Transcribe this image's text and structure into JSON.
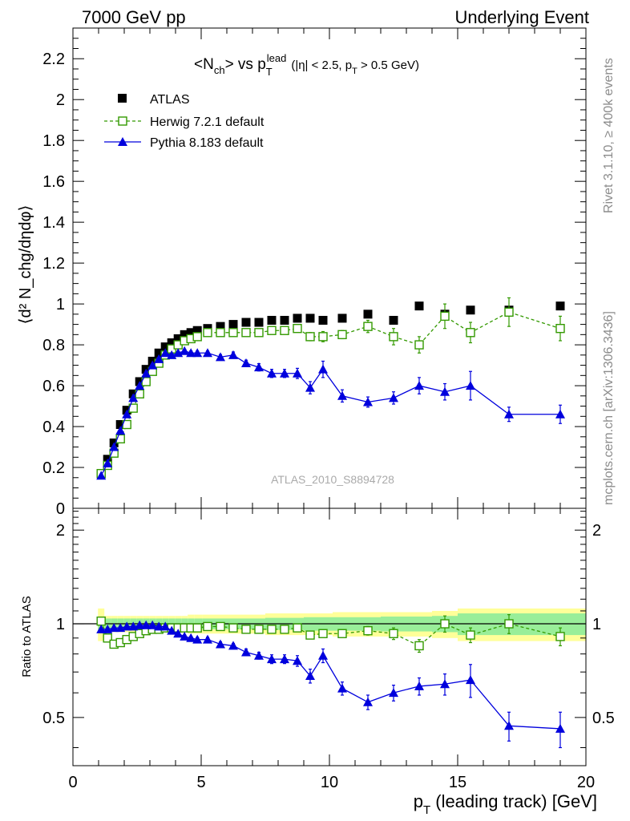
{
  "header": {
    "left": "7000 GeV pp",
    "right": "Underlying Event"
  },
  "side": {
    "upper": "Rivet 3.1.10, ≥ 400k events",
    "lower": "mcplots.cern.ch [arXiv:1306.3436]"
  },
  "colors": {
    "data": "#000000",
    "herwig": "#339900",
    "pythia": "#0000dd",
    "band_inner": "#99ee99",
    "band_outer": "#ffff99"
  },
  "chart_data": [
    {
      "type": "scatter",
      "panel": "main",
      "title_parts": {
        "lhs": "<N",
        "lhs_sub": "ch",
        "mid": "> vs p",
        "mid_sub": "T",
        "mid_sup": "lead",
        "cut_a": "(|η| < 2.5, p",
        "cut_sub": "T",
        "cut_b": " > 0.5 GeV)"
      },
      "ylabel": "⟨d² N_chg/dηdφ⟩",
      "ylim": [
        0,
        2.35
      ],
      "yticks": [
        0,
        0.2,
        0.4,
        0.6,
        0.8,
        1,
        1.2,
        1.4,
        1.6,
        1.8,
        2,
        2.2
      ],
      "ytick_labels": [
        "0",
        "0.2",
        "0.4",
        "0.6",
        "0.8",
        "1",
        "1.2",
        "1.4",
        "1.6",
        "1.8",
        "2",
        "2.2"
      ],
      "xlim": [
        0,
        20
      ],
      "watermark": "ATLAS_2010_S8894728",
      "legend": [
        "ATLAS",
        "Herwig 7.2.1 default",
        "Pythia 8.183 default"
      ],
      "x": [
        1.1,
        1.35,
        1.6,
        1.85,
        2.1,
        2.35,
        2.6,
        2.85,
        3.1,
        3.35,
        3.6,
        3.85,
        4.1,
        4.35,
        4.6,
        4.85,
        5.25,
        5.75,
        6.25,
        6.75,
        7.25,
        7.75,
        8.25,
        8.75,
        9.25,
        9.75,
        10.5,
        11.5,
        12.5,
        13.5,
        14.5,
        15.5,
        17.0,
        19.0
      ],
      "series": [
        {
          "name": "ATLAS",
          "values": [
            0.17,
            0.24,
            0.32,
            0.41,
            0.48,
            0.56,
            0.62,
            0.68,
            0.72,
            0.76,
            0.79,
            0.81,
            0.83,
            0.85,
            0.86,
            0.87,
            0.88,
            0.89,
            0.9,
            0.91,
            0.91,
            0.92,
            0.92,
            0.93,
            0.93,
            0.92,
            0.93,
            0.95,
            0.92,
            0.99,
            0.95,
            0.97,
            0.97,
            0.99
          ],
          "errors": [
            0,
            0,
            0,
            0,
            0,
            0,
            0,
            0,
            0,
            0,
            0,
            0,
            0,
            0,
            0,
            0,
            0,
            0,
            0,
            0,
            0,
            0,
            0,
            0,
            0,
            0,
            0,
            0,
            0,
            0,
            0,
            0,
            0,
            0
          ]
        },
        {
          "name": "Herwig 7.2.1 default",
          "values": [
            0.17,
            0.21,
            0.27,
            0.34,
            0.41,
            0.49,
            0.56,
            0.62,
            0.67,
            0.71,
            0.75,
            0.78,
            0.8,
            0.82,
            0.83,
            0.84,
            0.86,
            0.86,
            0.86,
            0.86,
            0.86,
            0.87,
            0.87,
            0.88,
            0.84,
            0.84,
            0.85,
            0.89,
            0.84,
            0.8,
            0.94,
            0.86,
            0.96,
            0.88
          ],
          "errors": [
            0.005,
            0.005,
            0.005,
            0.005,
            0.005,
            0.005,
            0.005,
            0.005,
            0.005,
            0.005,
            0.005,
            0.005,
            0.005,
            0.005,
            0.008,
            0.008,
            0.01,
            0.01,
            0.01,
            0.01,
            0.012,
            0.012,
            0.014,
            0.016,
            0.02,
            0.025,
            0.02,
            0.03,
            0.04,
            0.04,
            0.06,
            0.05,
            0.07,
            0.06
          ]
        },
        {
          "name": "Pythia 8.183 default",
          "values": [
            0.16,
            0.22,
            0.3,
            0.38,
            0.46,
            0.54,
            0.6,
            0.66,
            0.7,
            0.73,
            0.76,
            0.75,
            0.76,
            0.77,
            0.76,
            0.76,
            0.76,
            0.74,
            0.75,
            0.71,
            0.69,
            0.66,
            0.66,
            0.66,
            0.59,
            0.68,
            0.55,
            0.52,
            0.54,
            0.6,
            0.57,
            0.6,
            0.46,
            0.46
          ],
          "errors": [
            0.005,
            0.005,
            0.005,
            0.005,
            0.005,
            0.005,
            0.005,
            0.005,
            0.005,
            0.005,
            0.005,
            0.008,
            0.008,
            0.008,
            0.01,
            0.01,
            0.01,
            0.012,
            0.015,
            0.015,
            0.018,
            0.02,
            0.02,
            0.025,
            0.03,
            0.04,
            0.03,
            0.025,
            0.03,
            0.04,
            0.04,
            0.07,
            0.035,
            0.045
          ]
        }
      ]
    },
    {
      "type": "scatter",
      "panel": "ratio",
      "ylabel": "Ratio to ATLAS",
      "ylim": [
        0.35,
        2.35
      ],
      "yscale": "log",
      "yticks": [
        0.5,
        1,
        2
      ],
      "ytick_labels": [
        "0.5",
        "1",
        "2"
      ],
      "xlim": [
        0,
        20
      ],
      "xticks": [
        0,
        5,
        10,
        15,
        20
      ],
      "xtick_labels": [
        "0",
        "5",
        "10",
        "15",
        "20"
      ],
      "xlabel": {
        "p": "p",
        "sub": "T",
        "rest": " (leading track) [GeV]"
      },
      "band_inner_halfwidth": [
        0.04,
        0.04,
        0.04,
        0.04,
        0.04,
        0.04,
        0.04,
        0.04,
        0.04,
        0.04,
        0.04,
        0.04,
        0.04,
        0.04,
        0.04,
        0.04,
        0.04,
        0.04,
        0.04,
        0.04,
        0.04,
        0.045,
        0.045,
        0.045,
        0.05,
        0.05,
        0.05,
        0.05,
        0.055,
        0.055,
        0.06,
        0.08,
        0.08,
        0.08
      ],
      "band_outer_halfwidth": [
        0.12,
        0.06,
        0.06,
        0.06,
        0.06,
        0.06,
        0.06,
        0.06,
        0.06,
        0.06,
        0.06,
        0.06,
        0.06,
        0.06,
        0.07,
        0.07,
        0.07,
        0.07,
        0.07,
        0.07,
        0.07,
        0.08,
        0.08,
        0.08,
        0.08,
        0.08,
        0.09,
        0.09,
        0.09,
        0.09,
        0.1,
        0.12,
        0.12,
        0.12
      ],
      "series": [
        {
          "name": "Herwig 7.2.1 default",
          "values": [
            1.02,
            0.9,
            0.86,
            0.87,
            0.89,
            0.91,
            0.93,
            0.95,
            0.96,
            0.96,
            0.97,
            0.97,
            0.97,
            0.97,
            0.97,
            0.97,
            0.98,
            0.98,
            0.97,
            0.96,
            0.96,
            0.96,
            0.96,
            0.97,
            0.92,
            0.93,
            0.93,
            0.95,
            0.93,
            0.85,
            1.0,
            0.92,
            1.0,
            0.91
          ],
          "errors": [
            0.02,
            0.02,
            0.02,
            0.02,
            0.02,
            0.02,
            0.01,
            0.01,
            0.01,
            0.01,
            0.01,
            0.01,
            0.01,
            0.01,
            0.01,
            0.01,
            0.01,
            0.01,
            0.01,
            0.015,
            0.015,
            0.015,
            0.015,
            0.02,
            0.02,
            0.025,
            0.02,
            0.03,
            0.04,
            0.04,
            0.06,
            0.05,
            0.07,
            0.06
          ]
        },
        {
          "name": "Pythia 8.183 default",
          "values": [
            0.96,
            0.96,
            0.97,
            0.97,
            0.98,
            0.98,
            0.99,
            0.99,
            0.99,
            0.98,
            0.98,
            0.95,
            0.93,
            0.91,
            0.9,
            0.89,
            0.89,
            0.86,
            0.85,
            0.81,
            0.79,
            0.77,
            0.77,
            0.76,
            0.68,
            0.79,
            0.62,
            0.56,
            0.6,
            0.63,
            0.64,
            0.66,
            0.47,
            0.46
          ],
          "errors": [
            0.01,
            0.01,
            0.01,
            0.01,
            0.01,
            0.01,
            0.01,
            0.01,
            0.01,
            0.01,
            0.01,
            0.01,
            0.01,
            0.01,
            0.01,
            0.015,
            0.015,
            0.015,
            0.015,
            0.02,
            0.02,
            0.025,
            0.025,
            0.03,
            0.035,
            0.04,
            0.03,
            0.03,
            0.035,
            0.04,
            0.05,
            0.08,
            0.05,
            0.06
          ]
        }
      ]
    }
  ]
}
